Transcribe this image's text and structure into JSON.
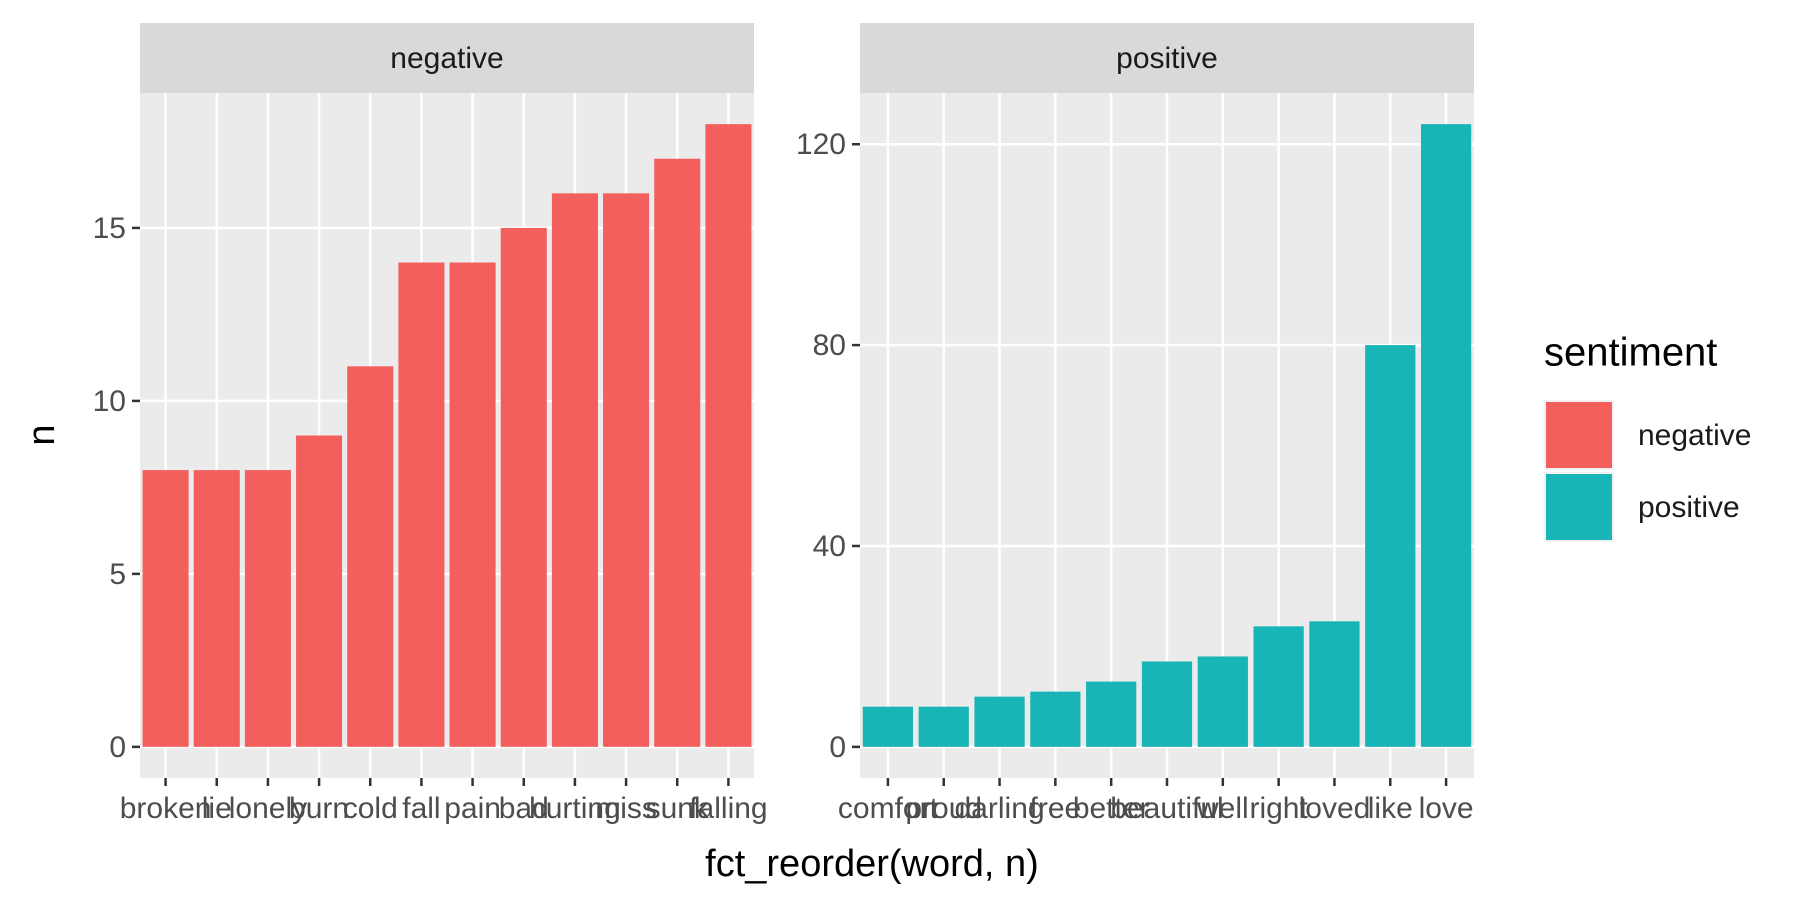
{
  "chart_data": [
    {
      "type": "bar",
      "title": "negative",
      "categories": [
        "broken",
        "lie",
        "lonely",
        "burn",
        "cold",
        "fall",
        "pain",
        "bad",
        "hurting",
        "miss",
        "sunk",
        "falling"
      ],
      "values": [
        8,
        8,
        8,
        9,
        11,
        14,
        14,
        15,
        16,
        16,
        17,
        18
      ],
      "color": "#f25f5c",
      "ylim": [
        -0.9,
        18.9
      ],
      "yticks": [
        0,
        5,
        10,
        15
      ],
      "grid": true
    },
    {
      "type": "bar",
      "title": "positive",
      "categories": [
        "comfort",
        "proud",
        "darling",
        "free",
        "better",
        "beautiful",
        "well",
        "right",
        "loved",
        "like",
        "love"
      ],
      "values": [
        8,
        8,
        10,
        11,
        13,
        17,
        18,
        24,
        25,
        80,
        124
      ],
      "color": "#19b4b6",
      "ylim": [
        -6.2,
        130.2
      ],
      "yticks": [
        0,
        40,
        80,
        120
      ],
      "grid": true
    }
  ],
  "x_label": "fct_reorder(word, n)",
  "y_label": "n",
  "legend_title": "sentiment"
}
